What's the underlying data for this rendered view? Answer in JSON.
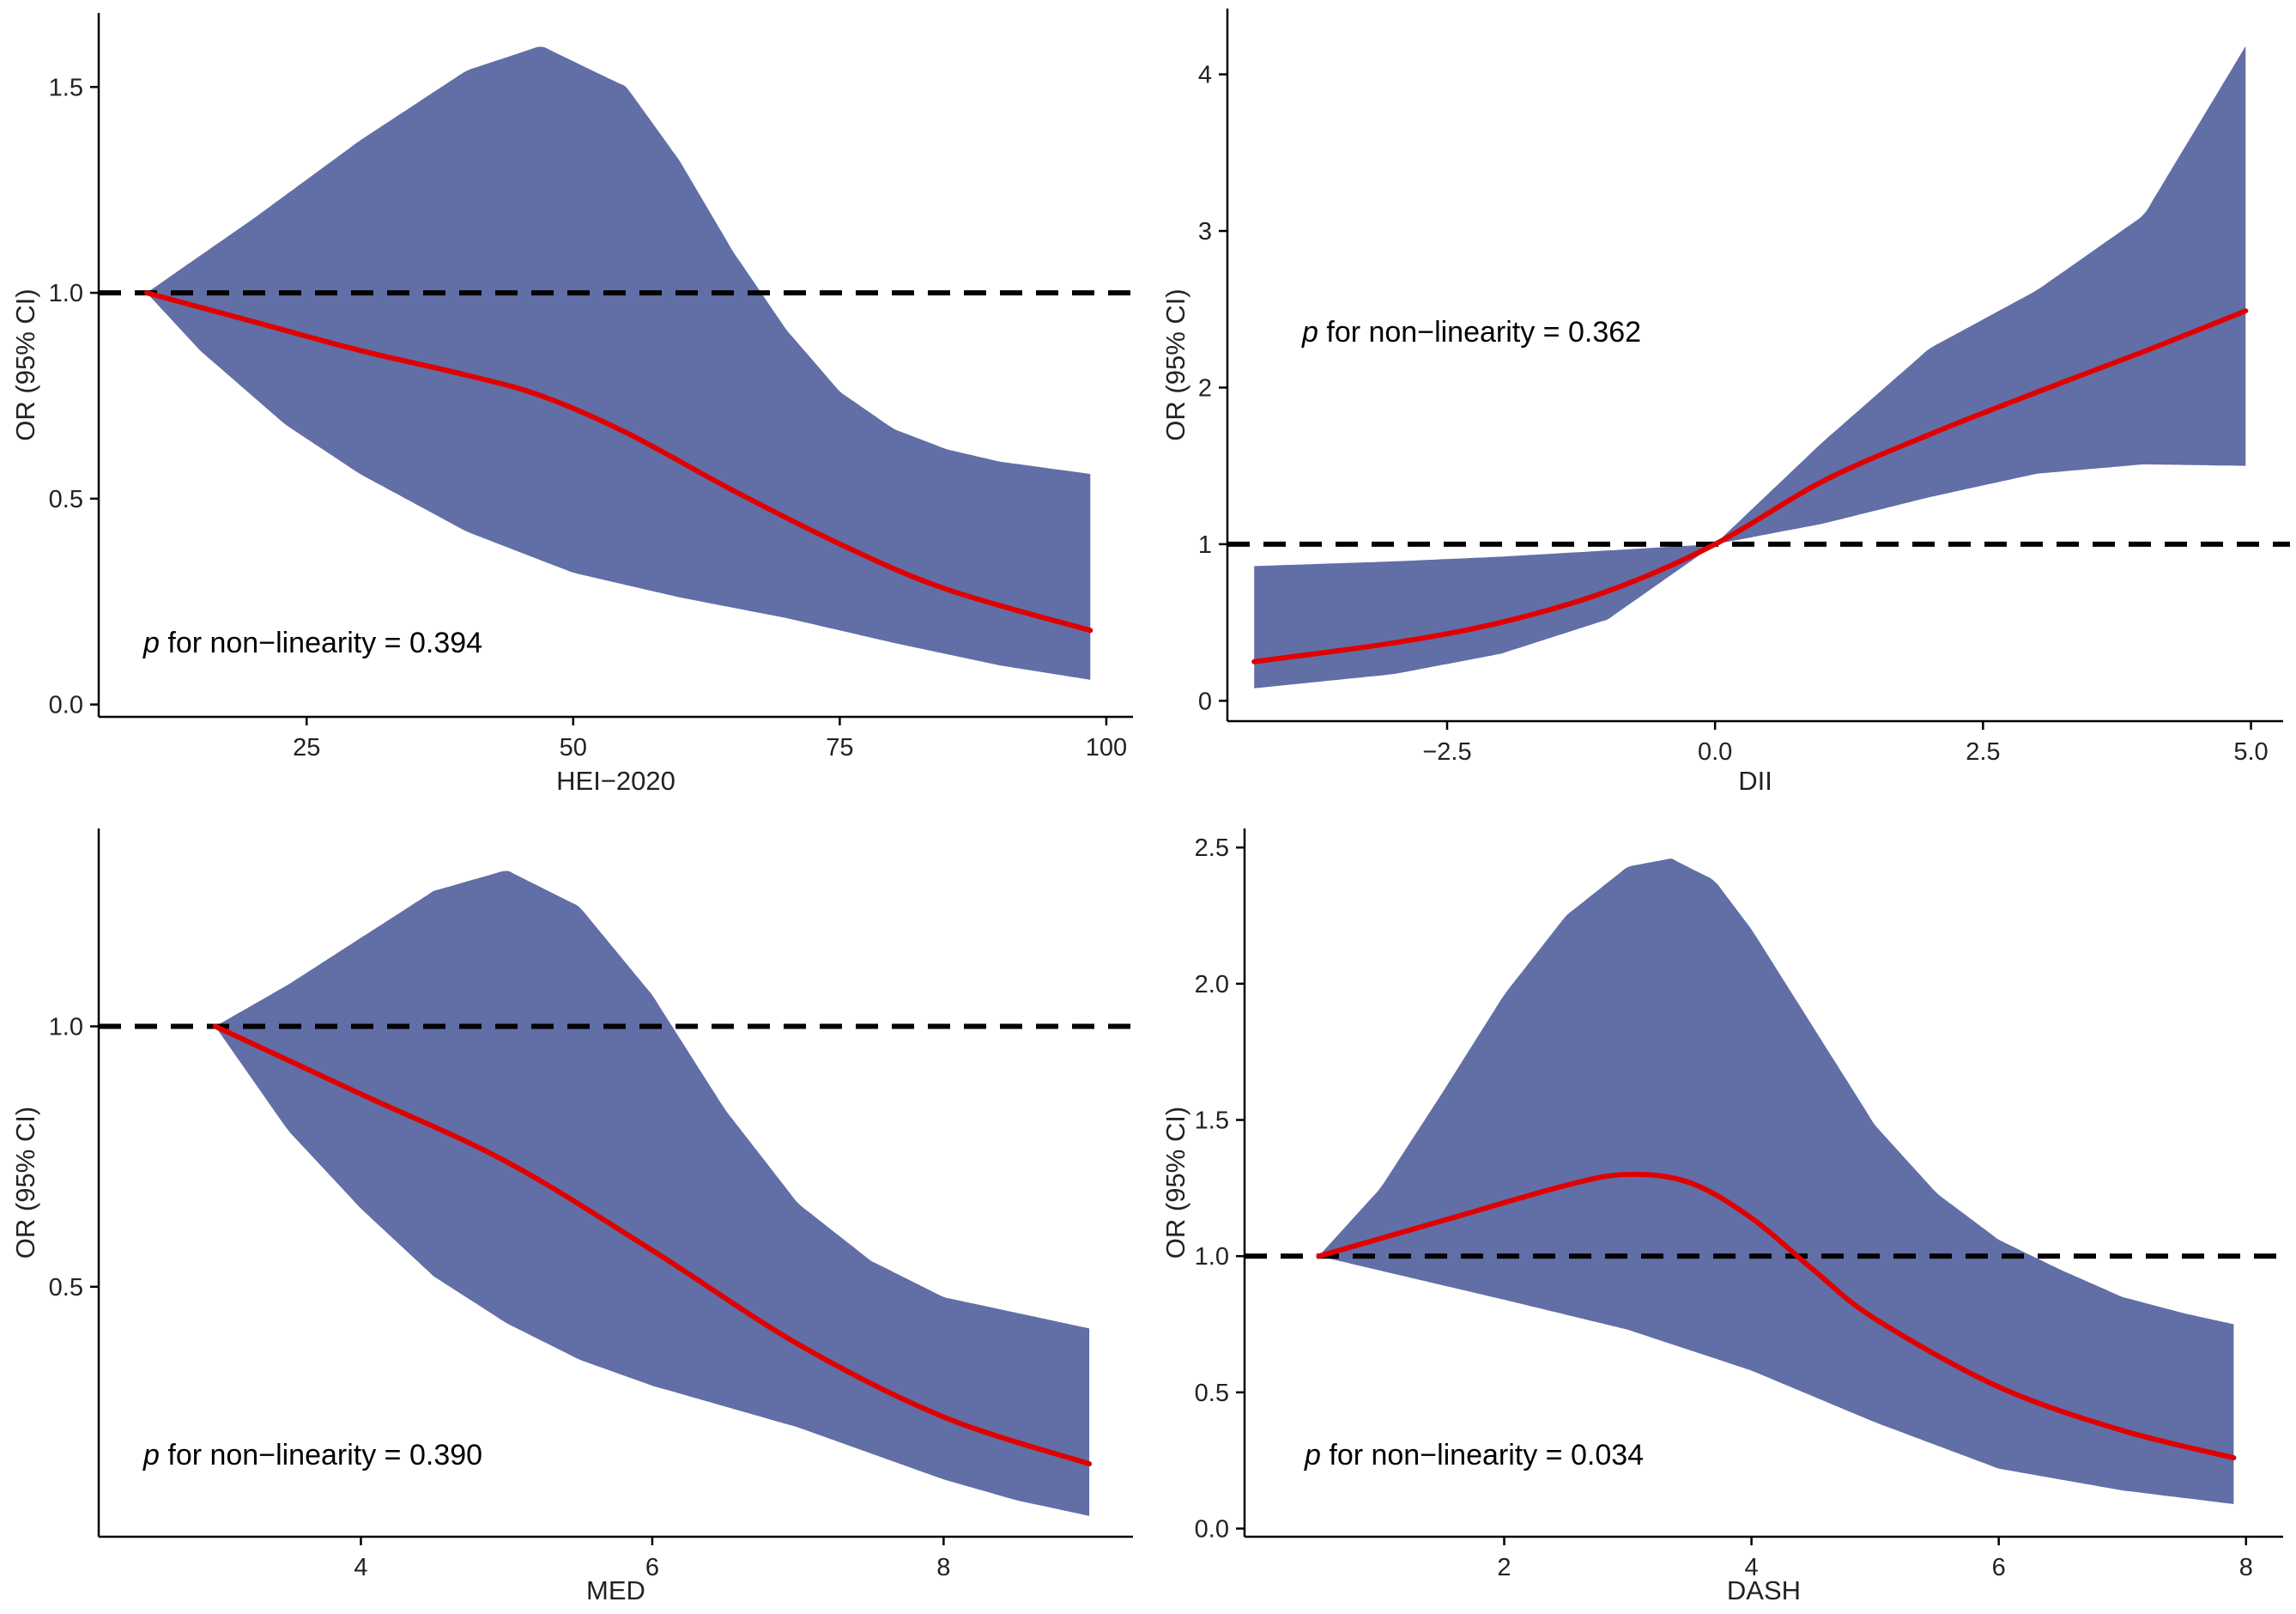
{
  "colors": {
    "band": "#626ea6",
    "curve": "#e00000",
    "reference": "#000000",
    "axis": "#000000",
    "text": "#222222"
  },
  "chart_data": [
    {
      "id": "hei",
      "type": "area",
      "xlabel": "HEI−2020",
      "ylabel": "OR (95% CI)",
      "xlim": [
        5.5,
        102.5
      ],
      "ylim": [
        -0.03,
        1.68
      ],
      "xticks": [
        {
          "value": 25,
          "label": "25"
        },
        {
          "value": 50,
          "label": "50"
        },
        {
          "value": 75,
          "label": "75"
        },
        {
          "value": 100,
          "label": "100"
        }
      ],
      "yticks": [
        {
          "value": 0.0,
          "label": "0.0"
        },
        {
          "value": 0.5,
          "label": "0.5"
        },
        {
          "value": 1.0,
          "label": "1.0"
        },
        {
          "value": 1.5,
          "label": "1.5"
        }
      ],
      "reference_y": 1.0,
      "annotation": {
        "p": "p",
        "text": " for non−linearity = 0.394"
      },
      "series": [
        {
          "name": "OR",
          "x": [
            10,
            20,
            30,
            40,
            47,
            55,
            65,
            75,
            85,
            98.5
          ],
          "y": [
            1.0,
            0.93,
            0.86,
            0.8,
            0.75,
            0.66,
            0.52,
            0.39,
            0.28,
            0.18
          ]
        },
        {
          "name": "95% CI upper",
          "x": [
            10,
            20,
            30,
            40,
            47,
            55,
            60,
            65,
            70,
            75,
            80,
            85,
            90,
            98.5
          ],
          "y": [
            1.0,
            1.18,
            1.37,
            1.54,
            1.6,
            1.5,
            1.32,
            1.1,
            0.91,
            0.76,
            0.67,
            0.62,
            0.59,
            0.56
          ]
        },
        {
          "name": "95% CI lower",
          "x": [
            10,
            15,
            23,
            30,
            40,
            50,
            60,
            70,
            80,
            90,
            98.5
          ],
          "y": [
            1.0,
            0.86,
            0.68,
            0.56,
            0.42,
            0.32,
            0.26,
            0.21,
            0.15,
            0.095,
            0.06
          ]
        }
      ]
    },
    {
      "id": "dii",
      "type": "area",
      "xlabel": "DII",
      "ylabel": "OR (95% CI)",
      "xlim": [
        -4.55,
        5.3
      ],
      "ylim": [
        -0.13,
        4.42
      ],
      "xticks": [
        {
          "value": -2.5,
          "label": "−2.5"
        },
        {
          "value": 0.0,
          "label": "0.0"
        },
        {
          "value": 2.5,
          "label": "2.5"
        },
        {
          "value": 5.0,
          "label": "5.0"
        }
      ],
      "yticks": [
        {
          "value": 0,
          "label": "0"
        },
        {
          "value": 1,
          "label": "1"
        },
        {
          "value": 2,
          "label": "2"
        },
        {
          "value": 3,
          "label": "3"
        },
        {
          "value": 4,
          "label": "4"
        }
      ],
      "reference_y": 1.0,
      "annotation": {
        "p": "p",
        "text": " for non−linearity = 0.362"
      },
      "series": [
        {
          "name": "OR",
          "x": [
            -4.3,
            -3,
            -2,
            -1,
            0,
            1,
            2,
            3,
            4,
            4.95
          ],
          "y": [
            0.25,
            0.37,
            0.5,
            0.7,
            1.0,
            1.4,
            1.7,
            1.97,
            2.23,
            2.49
          ]
        },
        {
          "name": "95% CI upper",
          "x": [
            -4.3,
            -3,
            -2,
            -1,
            0,
            1,
            2,
            3,
            4,
            4.95
          ],
          "y": [
            0.86,
            0.89,
            0.92,
            0.96,
            1.0,
            1.65,
            2.25,
            2.62,
            3.1,
            4.18
          ]
        },
        {
          "name": "95% CI lower",
          "x": [
            -4.3,
            -3,
            -2,
            -1,
            0,
            1,
            2,
            3,
            4,
            4.95
          ],
          "y": [
            0.08,
            0.17,
            0.3,
            0.52,
            1.0,
            1.13,
            1.3,
            1.45,
            1.51,
            1.5
          ]
        }
      ]
    },
    {
      "id": "med",
      "type": "area",
      "xlabel": "MED",
      "ylabel": "OR (95% CI)",
      "xlim": [
        2.2,
        9.3
      ],
      "ylim": [
        0.02,
        1.38
      ],
      "xticks": [
        {
          "value": 4,
          "label": "4"
        },
        {
          "value": 6,
          "label": "6"
        },
        {
          "value": 8,
          "label": "8"
        }
      ],
      "yticks": [
        {
          "value": 0.5,
          "label": "0.5"
        },
        {
          "value": 1.0,
          "label": "1.0"
        }
      ],
      "reference_y": 1.0,
      "annotation": {
        "p": "p",
        "text": " for non−linearity = 0.390"
      },
      "series": [
        {
          "name": "OR",
          "x": [
            3,
            4,
            5,
            6,
            7,
            8,
            9
          ],
          "y": [
            1.0,
            0.87,
            0.74,
            0.57,
            0.39,
            0.25,
            0.16
          ]
        },
        {
          "name": "95% CI upper",
          "x": [
            3,
            3.5,
            4,
            4.5,
            5,
            5.5,
            6,
            6.5,
            7,
            7.5,
            8,
            8.5,
            9
          ],
          "y": [
            1.0,
            1.08,
            1.17,
            1.26,
            1.3,
            1.23,
            1.06,
            0.84,
            0.66,
            0.55,
            0.48,
            0.45,
            0.42
          ]
        },
        {
          "name": "95% CI lower",
          "x": [
            3,
            3.5,
            4,
            4.5,
            5,
            5.5,
            6,
            6.5,
            7,
            7.5,
            8,
            8.5,
            9
          ],
          "y": [
            1.0,
            0.8,
            0.65,
            0.52,
            0.43,
            0.36,
            0.31,
            0.27,
            0.23,
            0.18,
            0.13,
            0.09,
            0.06
          ]
        }
      ]
    },
    {
      "id": "dash",
      "type": "area",
      "xlabel": "DASH",
      "ylabel": "OR (95% CI)",
      "xlim": [
        -0.1,
        8.3
      ],
      "ylim": [
        -0.03,
        2.57
      ],
      "xticks": [
        {
          "value": 2,
          "label": "2"
        },
        {
          "value": 4,
          "label": "4"
        },
        {
          "value": 6,
          "label": "6"
        },
        {
          "value": 8,
          "label": "8"
        }
      ],
      "yticks": [
        {
          "value": 0.0,
          "label": "0.0"
        },
        {
          "value": 0.5,
          "label": "0.5"
        },
        {
          "value": 1.0,
          "label": "1.0"
        },
        {
          "value": 1.5,
          "label": "1.5"
        },
        {
          "value": 2.0,
          "label": "2.0"
        },
        {
          "value": 2.5,
          "label": "2.5"
        }
      ],
      "reference_y": 1.0,
      "annotation": {
        "p": "p",
        "text": " for non−linearity = 0.034"
      },
      "series": [
        {
          "name": "OR",
          "x": [
            0.5,
            1.5,
            2.5,
            3.0,
            3.5,
            4.0,
            4.5,
            5.0,
            6.0,
            7.0,
            7.9
          ],
          "y": [
            1.0,
            1.13,
            1.26,
            1.3,
            1.27,
            1.14,
            0.95,
            0.77,
            0.52,
            0.36,
            0.26
          ]
        },
        {
          "name": "95% CI upper",
          "x": [
            0.5,
            1.0,
            1.5,
            2.0,
            2.5,
            3.0,
            3.35,
            3.7,
            4.0,
            4.5,
            5.0,
            5.5,
            6.0,
            6.5,
            7.0,
            7.5,
            7.9
          ],
          "y": [
            1.0,
            1.25,
            1.6,
            1.96,
            2.25,
            2.43,
            2.46,
            2.38,
            2.2,
            1.84,
            1.48,
            1.23,
            1.06,
            0.95,
            0.85,
            0.79,
            0.75
          ]
        },
        {
          "name": "95% CI lower",
          "x": [
            0.5,
            2,
            3,
            4,
            5,
            6,
            7,
            7.9
          ],
          "y": [
            1.0,
            0.84,
            0.73,
            0.58,
            0.39,
            0.22,
            0.14,
            0.09
          ]
        }
      ]
    }
  ]
}
